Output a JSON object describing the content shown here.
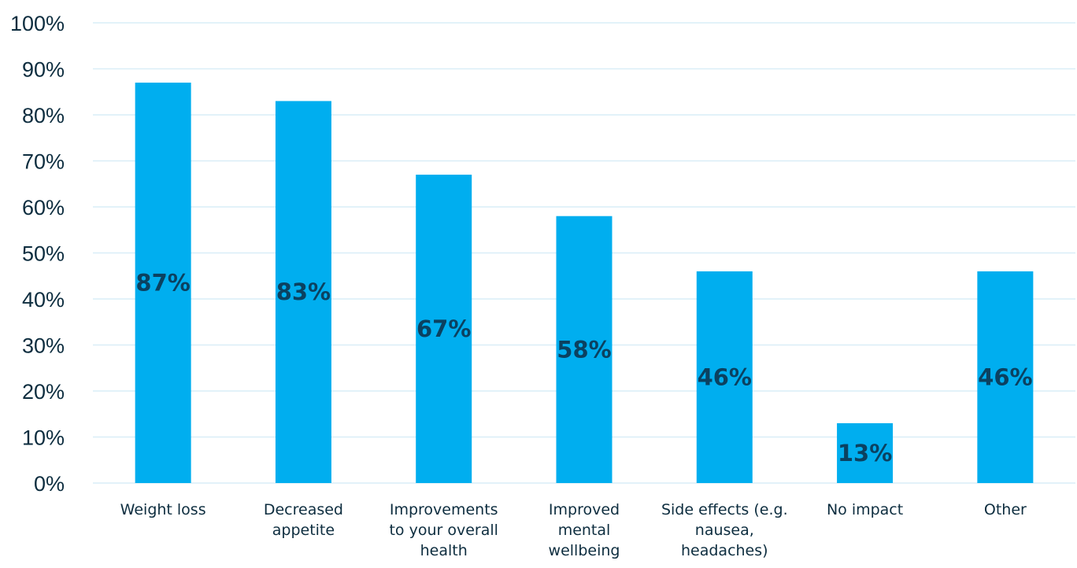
{
  "chart_data": {
    "type": "bar",
    "title": "",
    "xlabel": "",
    "ylabel": "",
    "categories": [
      [
        "Weight loss"
      ],
      [
        "Decreased",
        "appetite"
      ],
      [
        "Improvements",
        "to your overall",
        "health"
      ],
      [
        "Improved",
        "mental",
        "wellbeing"
      ],
      [
        "Side effects (e.g.",
        "nausea,",
        "headaches)"
      ],
      [
        "No impact"
      ],
      [
        "Other"
      ]
    ],
    "values": [
      87,
      83,
      67,
      58,
      46,
      13,
      46
    ],
    "data_labels": [
      "87%",
      "83%",
      "67%",
      "58%",
      "46%",
      "13%",
      "46%"
    ],
    "ylim": [
      0,
      100
    ],
    "yticks": [
      0,
      10,
      20,
      30,
      40,
      50,
      60,
      70,
      80,
      90,
      100
    ],
    "ytick_labels": [
      "0%",
      "10%",
      "20%",
      "30%",
      "40%",
      "50%",
      "60%",
      "70%",
      "80%",
      "90%",
      "100%"
    ],
    "grid": true,
    "legend": "none",
    "colors": {
      "bar": "#00aeef",
      "grid": "#d9eef7",
      "label": "#0b4160",
      "text": "#0d2d3f"
    }
  }
}
